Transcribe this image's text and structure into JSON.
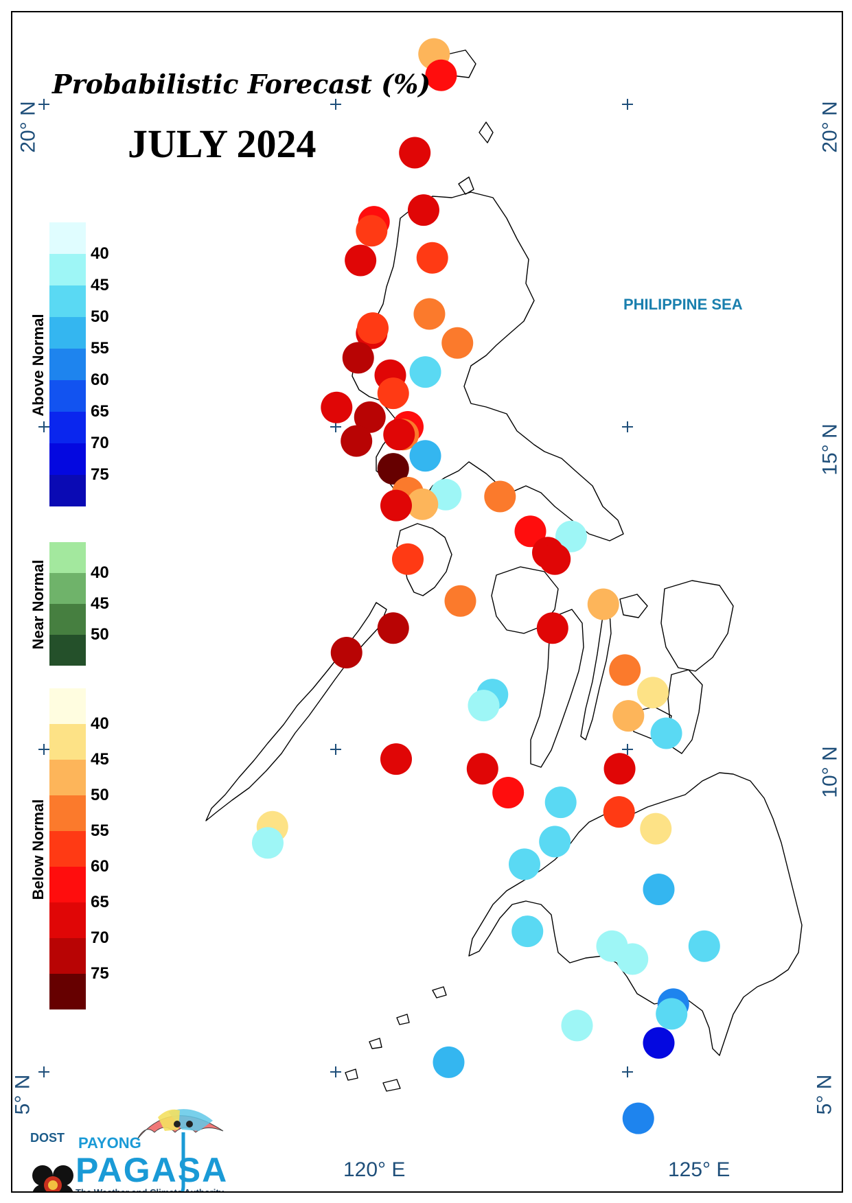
{
  "title": "Probabilistic Forecast (%)",
  "period": "JULY 2024",
  "sea_label": "PHILIPPINE SEA",
  "lat_labels": [
    "20° N",
    "15° N",
    "10° N",
    "5° N"
  ],
  "lon_labels": [
    "120° E",
    "125° E"
  ],
  "legend": {
    "above": {
      "label": "Above Normal",
      "ticks": [
        "40",
        "45",
        "50",
        "55",
        "60",
        "65",
        "70",
        "75"
      ],
      "colors": [
        "#e0fdff",
        "#9ef6f6",
        "#5ad9f3",
        "#34b6f0",
        "#1e84ee",
        "#1253f0",
        "#0a26ee",
        "#0408e0",
        "#0a0ab4"
      ]
    },
    "near": {
      "label": "Near Normal",
      "ticks": [
        "40",
        "45",
        "50"
      ],
      "colors": [
        "#a3e89e",
        "#6fb36a",
        "#467f40",
        "#24502a"
      ]
    },
    "below": {
      "label": "Below Normal",
      "ticks": [
        "40",
        "45",
        "50",
        "55",
        "60",
        "65",
        "70",
        "75"
      ],
      "colors": [
        "#fffde0",
        "#fde286",
        "#fdb55a",
        "#fb7a2c",
        "#ff3a14",
        "#ff0d0d",
        "#e00606",
        "#b80404",
        "#660000"
      ]
    }
  },
  "logo": {
    "agency": "DOST",
    "brand_top": "PAYONG",
    "brand": "PAGASA",
    "tagline": "The Weather and Climate Authority"
  },
  "stations": [
    {
      "lon": 121.65,
      "lat": 20.78,
      "cat": "below",
      "pct": 47
    },
    {
      "lon": 121.77,
      "lat": 20.45,
      "cat": "below",
      "pct": 60
    },
    {
      "lon": 121.32,
      "lat": 19.25,
      "cat": "below",
      "pct": 65
    },
    {
      "lon": 121.47,
      "lat": 18.36,
      "cat": "below",
      "pct": 65
    },
    {
      "lon": 120.62,
      "lat": 18.18,
      "cat": "below",
      "pct": 62
    },
    {
      "lon": 120.58,
      "lat": 18.04,
      "cat": "below",
      "pct": 55
    },
    {
      "lon": 120.39,
      "lat": 17.58,
      "cat": "below",
      "pct": 65
    },
    {
      "lon": 121.62,
      "lat": 17.62,
      "cat": "below",
      "pct": 55
    },
    {
      "lon": 121.57,
      "lat": 16.75,
      "cat": "below",
      "pct": 50
    },
    {
      "lon": 122.05,
      "lat": 16.3,
      "cat": "below",
      "pct": 50
    },
    {
      "lon": 120.58,
      "lat": 16.45,
      "cat": "below",
      "pct": 65
    },
    {
      "lon": 120.6,
      "lat": 16.53,
      "cat": "below",
      "pct": 55
    },
    {
      "lon": 120.35,
      "lat": 16.07,
      "cat": "below",
      "pct": 72
    },
    {
      "lon": 121.5,
      "lat": 15.85,
      "cat": "above",
      "pct": 45
    },
    {
      "lon": 120.9,
      "lat": 15.8,
      "cat": "below",
      "pct": 65
    },
    {
      "lon": 120.95,
      "lat": 15.52,
      "cat": "below",
      "pct": 55
    },
    {
      "lon": 119.98,
      "lat": 15.3,
      "cat": "below",
      "pct": 65
    },
    {
      "lon": 120.55,
      "lat": 15.15,
      "cat": "below",
      "pct": 72
    },
    {
      "lon": 121.2,
      "lat": 15.0,
      "cat": "below",
      "pct": 62
    },
    {
      "lon": 121.12,
      "lat": 14.88,
      "cat": "below",
      "pct": 50
    },
    {
      "lon": 121.05,
      "lat": 14.88,
      "cat": "below",
      "pct": 65
    },
    {
      "lon": 120.32,
      "lat": 14.78,
      "cat": "below",
      "pct": 72
    },
    {
      "lon": 121.5,
      "lat": 14.55,
      "cat": "above",
      "pct": 50
    },
    {
      "lon": 120.95,
      "lat": 14.35,
      "cat": "below",
      "pct": 78
    },
    {
      "lon": 121.85,
      "lat": 13.95,
      "cat": "above",
      "pct": 40
    },
    {
      "lon": 122.78,
      "lat": 13.92,
      "cat": "below",
      "pct": 50
    },
    {
      "lon": 121.2,
      "lat": 13.98,
      "cat": "below",
      "pct": 50
    },
    {
      "lon": 121.45,
      "lat": 13.8,
      "cat": "below",
      "pct": 45
    },
    {
      "lon": 121.0,
      "lat": 13.78,
      "cat": "below",
      "pct": 65
    },
    {
      "lon": 123.3,
      "lat": 13.38,
      "cat": "below",
      "pct": 62
    },
    {
      "lon": 124.0,
      "lat": 13.3,
      "cat": "above",
      "pct": 40
    },
    {
      "lon": 123.6,
      "lat": 13.05,
      "cat": "below",
      "pct": 65
    },
    {
      "lon": 123.72,
      "lat": 12.95,
      "cat": "below",
      "pct": 65
    },
    {
      "lon": 121.2,
      "lat": 12.95,
      "cat": "below",
      "pct": 55
    },
    {
      "lon": 122.1,
      "lat": 12.3,
      "cat": "below",
      "pct": 50
    },
    {
      "lon": 124.55,
      "lat": 12.25,
      "cat": "below",
      "pct": 45
    },
    {
      "lon": 123.68,
      "lat": 11.88,
      "cat": "below",
      "pct": 65
    },
    {
      "lon": 120.95,
      "lat": 11.88,
      "cat": "below",
      "pct": 72
    },
    {
      "lon": 120.15,
      "lat": 11.5,
      "cat": "below",
      "pct": 72
    },
    {
      "lon": 124.92,
      "lat": 11.23,
      "cat": "below",
      "pct": 50
    },
    {
      "lon": 122.65,
      "lat": 10.85,
      "cat": "above",
      "pct": 45
    },
    {
      "lon": 122.5,
      "lat": 10.68,
      "cat": "above",
      "pct": 40
    },
    {
      "lon": 125.4,
      "lat": 10.88,
      "cat": "below",
      "pct": 40
    },
    {
      "lon": 124.98,
      "lat": 10.52,
      "cat": "below",
      "pct": 45
    },
    {
      "lon": 125.63,
      "lat": 10.25,
      "cat": "above",
      "pct": 45
    },
    {
      "lon": 121.0,
      "lat": 9.85,
      "cat": "below",
      "pct": 65
    },
    {
      "lon": 122.48,
      "lat": 9.7,
      "cat": "below",
      "pct": 65
    },
    {
      "lon": 124.83,
      "lat": 9.7,
      "cat": "below",
      "pct": 65
    },
    {
      "lon": 122.92,
      "lat": 9.33,
      "cat": "below",
      "pct": 62
    },
    {
      "lon": 123.82,
      "lat": 9.18,
      "cat": "above",
      "pct": 45
    },
    {
      "lon": 124.82,
      "lat": 9.03,
      "cat": "below",
      "pct": 55
    },
    {
      "lon": 125.45,
      "lat": 8.77,
      "cat": "below",
      "pct": 40
    },
    {
      "lon": 118.88,
      "lat": 8.8,
      "cat": "below",
      "pct": 40
    },
    {
      "lon": 118.8,
      "lat": 8.55,
      "cat": "above",
      "pct": 40
    },
    {
      "lon": 123.72,
      "lat": 8.57,
      "cat": "above",
      "pct": 45
    },
    {
      "lon": 123.2,
      "lat": 8.22,
      "cat": "above",
      "pct": 45
    },
    {
      "lon": 125.5,
      "lat": 7.83,
      "cat": "above",
      "pct": 50
    },
    {
      "lon": 123.25,
      "lat": 7.18,
      "cat": "above",
      "pct": 45
    },
    {
      "lon": 124.7,
      "lat": 6.95,
      "cat": "above",
      "pct": 40
    },
    {
      "lon": 126.28,
      "lat": 6.95,
      "cat": "above",
      "pct": 45
    },
    {
      "lon": 125.05,
      "lat": 6.75,
      "cat": "above",
      "pct": 40
    },
    {
      "lon": 125.75,
      "lat": 6.05,
      "cat": "above",
      "pct": 55
    },
    {
      "lon": 125.72,
      "lat": 5.9,
      "cat": "above",
      "pct": 45
    },
    {
      "lon": 124.1,
      "lat": 5.72,
      "cat": "above",
      "pct": 40
    },
    {
      "lon": 125.5,
      "lat": 5.45,
      "cat": "above",
      "pct": 70
    },
    {
      "lon": 121.9,
      "lat": 5.15,
      "cat": "above",
      "pct": 50
    },
    {
      "lon": 125.15,
      "lat": 4.28,
      "cat": "above",
      "pct": 55
    }
  ]
}
